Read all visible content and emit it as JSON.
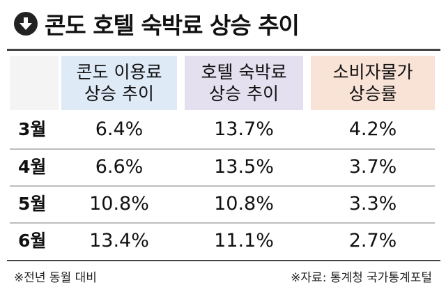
{
  "title": "콘도 호텔 숙박료 상승 추이",
  "icon": "arrow-down-circle-icon",
  "columns": [
    {
      "line1": "콘도 이용료",
      "line2": "상승 추이",
      "color": "#dfeaf7"
    },
    {
      "line1": "호텔 숙박료",
      "line2": "상승 추이",
      "color": "#e4e0ef"
    },
    {
      "line1": "소비자물가",
      "line2": "상승률",
      "color": "#f9e3d7"
    }
  ],
  "rows": [
    {
      "label": "3월",
      "values": [
        "6.4%",
        "13.7%",
        "4.2%"
      ]
    },
    {
      "label": "4월",
      "values": [
        "6.6%",
        "13.5%",
        "3.7%"
      ]
    },
    {
      "label": "5월",
      "values": [
        "10.8%",
        "10.8%",
        "3.3%"
      ]
    },
    {
      "label": "6월",
      "values": [
        "13.4%",
        "11.1%",
        "2.7%"
      ]
    }
  ],
  "footnote_left": "※전년 동월 대비",
  "footnote_right": "※자료: 통계청 국가통계포털",
  "chart_data": {
    "type": "table",
    "title": "콘도 호텔 숙박료 상승 추이",
    "categories": [
      "3월",
      "4월",
      "5월",
      "6월"
    ],
    "series": [
      {
        "name": "콘도 이용료 상승 추이",
        "values": [
          6.4,
          6.6,
          10.8,
          13.4
        ]
      },
      {
        "name": "호텔 숙박료 상승 추이",
        "values": [
          13.7,
          13.5,
          10.8,
          11.1
        ]
      },
      {
        "name": "소비자물가 상승률",
        "values": [
          4.2,
          3.7,
          3.3,
          2.7
        ]
      }
    ]
  }
}
